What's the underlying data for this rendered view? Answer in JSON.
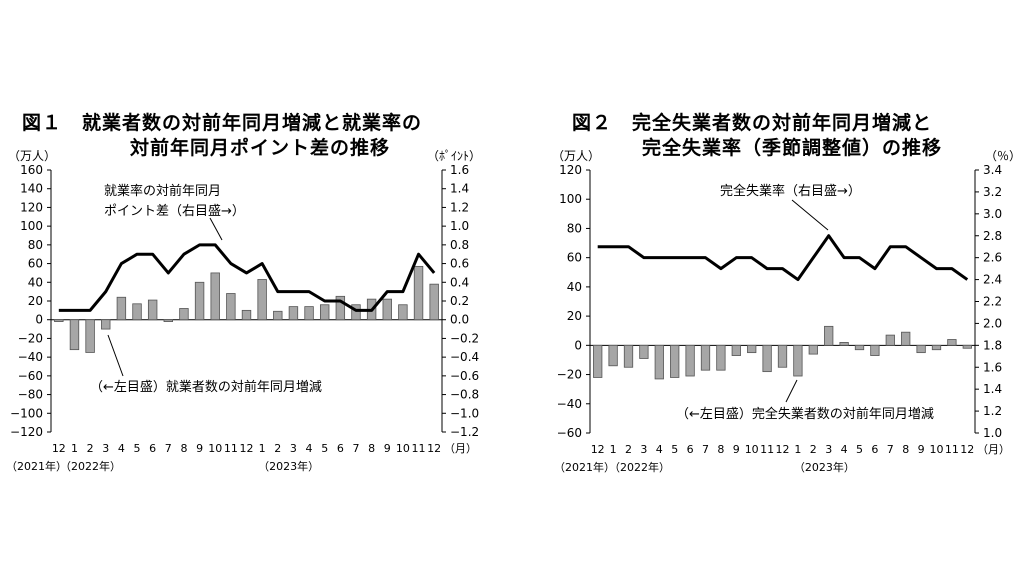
{
  "charts": [
    {
      "title_line1": "図１　就業者数の対前年同月増減と就業率の",
      "title_line2": "対前年同月ポイント差の推移",
      "left_unit": "（万人）",
      "right_unit": "（ﾎﾟｲﾝﾄ）",
      "month_unit": "（月）",
      "year_labels": [
        "（2021年）",
        "（2022年）",
        "（2023年）"
      ],
      "line_annotation": [
        "就業率の対前年同月",
        "ポイント差（右目盛→）"
      ],
      "bar_annotation": "（←左目盛）就業者数の対前年同月増減",
      "line_color": "#000000",
      "bar_color": "#a6a6a6"
    },
    {
      "title_line1": "図２　完全失業者数の対前年同月増減と",
      "title_line2": "完全失業率（季節調整値）の推移",
      "left_unit": "（万人）",
      "right_unit": "（％）",
      "month_unit": "（月）",
      "year_labels": [
        "（2021年）",
        "（2022年）",
        "（2023年）"
      ],
      "line_annotation": [
        "完全失業率（右目盛→）"
      ],
      "bar_annotation": "（←左目盛）完全失業者数の対前年同月増減",
      "line_color": "#000000",
      "bar_color": "#a6a6a6"
    }
  ],
  "chart_data": [
    {
      "type": "bar",
      "categories": [
        "12",
        "1",
        "2",
        "3",
        "4",
        "5",
        "6",
        "7",
        "8",
        "9",
        "10",
        "11",
        "12",
        "1",
        "2",
        "3",
        "4",
        "5",
        "6",
        "7",
        "8",
        "9",
        "10",
        "11",
        "12"
      ],
      "series": [
        {
          "name": "（←左目盛）就業者数の対前年同月増減",
          "type": "bar",
          "axis": "left",
          "values": [
            -2,
            -32,
            -35,
            -10,
            24,
            17,
            21,
            -2,
            12,
            40,
            50,
            28,
            10,
            43,
            9,
            14,
            14,
            16,
            25,
            16,
            22,
            22,
            16,
            57,
            38
          ]
        },
        {
          "name": "就業率の対前年同月ポイント差（右目盛→）",
          "type": "line",
          "axis": "right",
          "values": [
            0.1,
            0.1,
            0.1,
            0.3,
            0.6,
            0.7,
            0.7,
            0.5,
            0.7,
            0.8,
            0.8,
            0.6,
            0.5,
            0.6,
            0.3,
            0.3,
            0.3,
            0.2,
            0.2,
            0.1,
            0.1,
            0.3,
            0.3,
            0.7,
            0.5
          ]
        }
      ],
      "ylim_left": [
        -120,
        160
      ],
      "ylim_right": [
        -1.2,
        1.6
      ],
      "yticks_left": [
        "160",
        "140",
        "120",
        "100",
        "80",
        "60",
        "40",
        "20",
        "0",
        "−20",
        "−40",
        "−60",
        "−80",
        "−100",
        "−120"
      ],
      "yticks_right": [
        "1.6",
        "1.4",
        "1.2",
        "1.0",
        "0.8",
        "0.6",
        "0.4",
        "0.2",
        "0.0",
        "−0.2",
        "−0.4",
        "−0.6",
        "−0.8",
        "−1.0",
        "−1.2"
      ]
    },
    {
      "type": "bar",
      "categories": [
        "12",
        "1",
        "2",
        "3",
        "4",
        "5",
        "6",
        "7",
        "8",
        "9",
        "10",
        "11",
        "12",
        "1",
        "2",
        "3",
        "4",
        "5",
        "6",
        "7",
        "8",
        "9",
        "10",
        "11",
        "12"
      ],
      "series": [
        {
          "name": "（←左目盛）完全失業者数の対前年同月増減",
          "type": "bar",
          "axis": "left",
          "values": [
            -22,
            -14,
            -15,
            -9,
            -23,
            -22,
            -21,
            -17,
            -17,
            -7,
            -5,
            -18,
            -15,
            -21,
            -6,
            13,
            2,
            -3,
            -7,
            7,
            9,
            -5,
            -3,
            4,
            -2
          ]
        },
        {
          "name": "完全失業率（右目盛→）",
          "type": "line",
          "axis": "right",
          "values": [
            2.7,
            2.7,
            2.7,
            2.6,
            2.6,
            2.6,
            2.6,
            2.6,
            2.5,
            2.6,
            2.6,
            2.5,
            2.5,
            2.4,
            2.6,
            2.8,
            2.6,
            2.6,
            2.5,
            2.7,
            2.7,
            2.6,
            2.5,
            2.5,
            2.4
          ]
        }
      ],
      "ylim_left": [
        -60,
        120
      ],
      "ylim_right": [
        1.0,
        3.4
      ],
      "yticks_left": [
        "120",
        "100",
        "80",
        "60",
        "40",
        "20",
        "0",
        "−20",
        "−40",
        "−60"
      ],
      "yticks_right": [
        "3.4",
        "3.2",
        "3.0",
        "2.8",
        "2.6",
        "2.4",
        "2.2",
        "2.0",
        "1.8",
        "1.6",
        "1.4",
        "1.2",
        "1.0"
      ]
    }
  ]
}
